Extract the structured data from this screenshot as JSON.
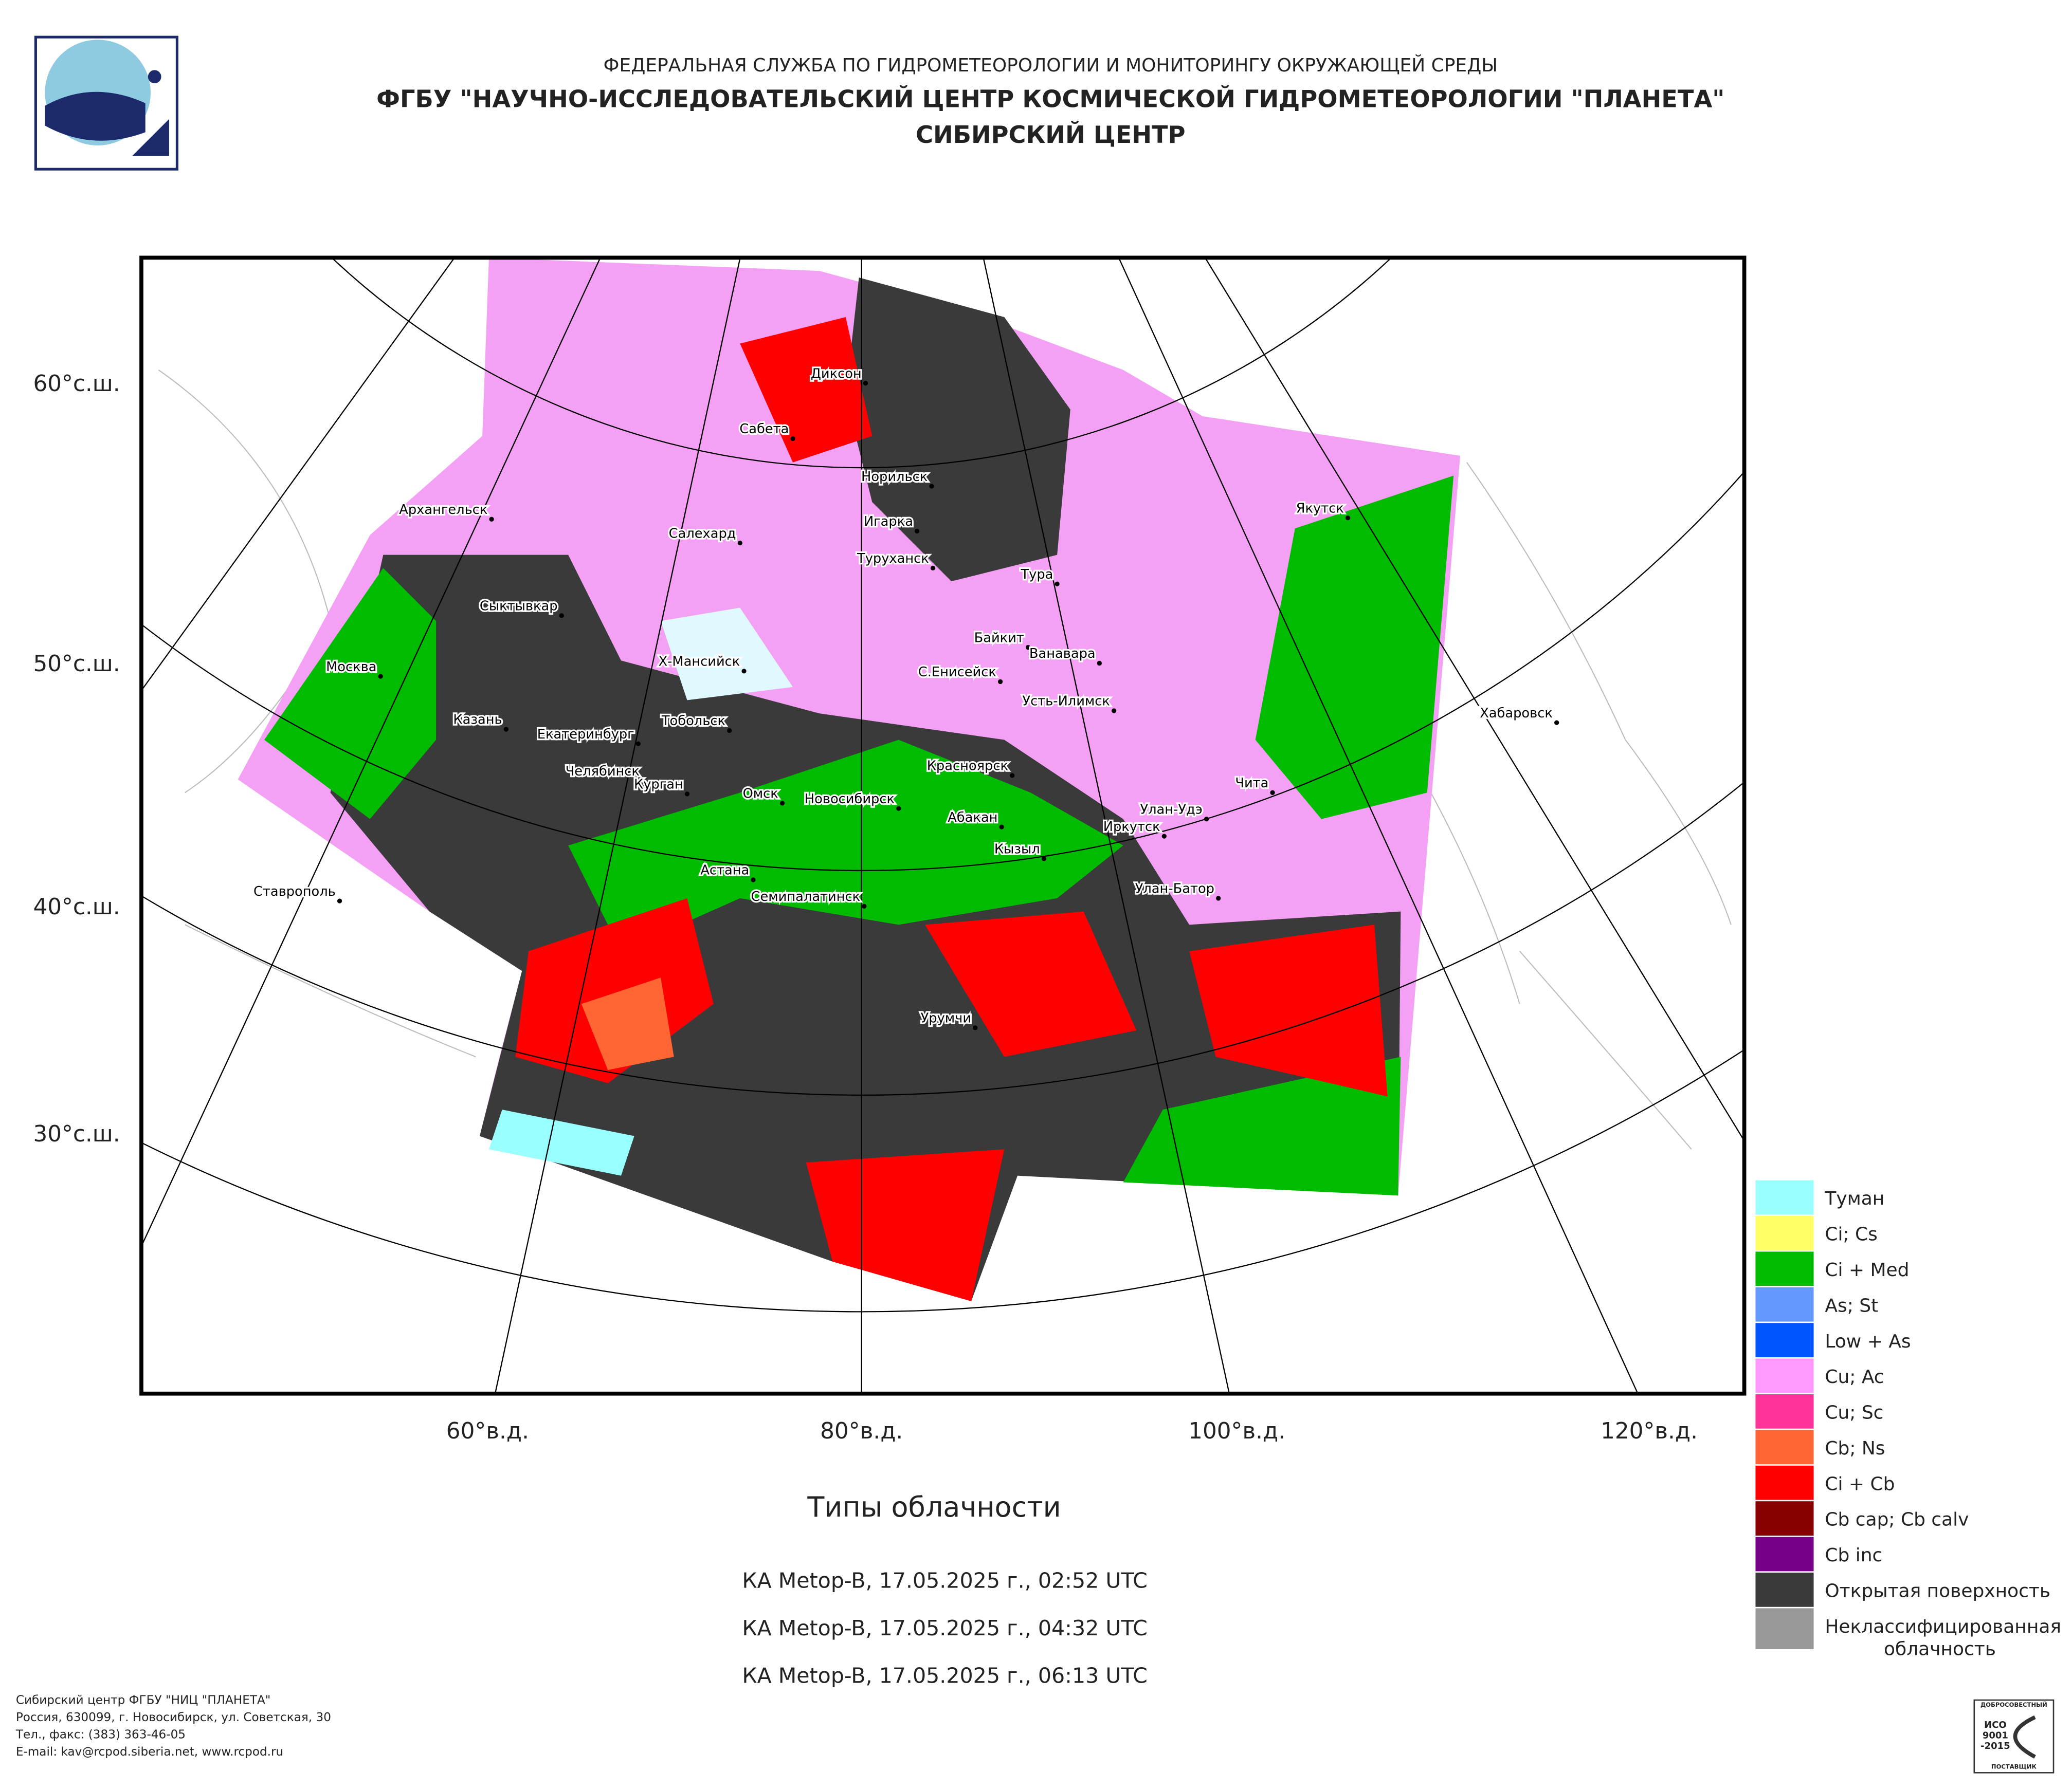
{
  "header": {
    "line1": "ФЕДЕРАЛЬНАЯ СЛУЖБА ПО ГИДРОМЕТЕОРОЛОГИИ И МОНИТОРИНГУ ОКРУЖАЮЩЕЙ СРЕДЫ",
    "line2": "ФГБУ \"НАУЧНО-ИССЛЕДОВАТЕЛЬСКИЙ ЦЕНТР КОСМИЧЕСКОЙ ГИДРОМЕТЕОРОЛОГИИ \"ПЛАНЕТА\"",
    "line3": "СИБИРСКИЙ ЦЕНТР"
  },
  "map": {
    "latitude_labels": [
      "60°с.ш.",
      "50°с.ш.",
      "40°с.ш.",
      "30°с.ш."
    ],
    "longitude_labels": [
      "60°в.д.",
      "80°в.д.",
      "100°в.д.",
      "120°в.д."
    ],
    "cities": [
      "Диксон",
      "Сабета",
      "Норильск",
      "Архангельск",
      "Игарка",
      "Салехард",
      "Якутск",
      "Туруханск",
      "Тура",
      "Сыктывкар",
      "Байкит",
      "Ванавара",
      "Москва",
      "Х-Мансийск",
      "С.Енисейск",
      "Усть-Илимск",
      "Хабаровск",
      "Казань",
      "Тобольск",
      "Екатеринбург",
      "Красноярск",
      "Челябинск",
      "Чита",
      "Курган",
      "Омск",
      "Новосибирск",
      "Улан-Удэ",
      "Абакан",
      "Иркутск",
      "Кызыл",
      "Астана",
      "Ставрополь",
      "Семипалатинск",
      "Улан-Батор",
      "Урумчи"
    ]
  },
  "legend": {
    "items": [
      {
        "label": [
          "Туман"
        ],
        "color": "#99ffff"
      },
      {
        "label": [
          "Ci; Cs"
        ],
        "color": "#ffff66"
      },
      {
        "label": [
          "Ci + Med"
        ],
        "color": "#00bb00"
      },
      {
        "label": [
          "As; St"
        ],
        "color": "#6699ff"
      },
      {
        "label": [
          "Low + As"
        ],
        "color": "#0055ff"
      },
      {
        "label": [
          "Cu; Ac"
        ],
        "color": "#ff99ff"
      },
      {
        "label": [
          "Cu; Sc"
        ],
        "color": "#ff3399"
      },
      {
        "label": [
          "Cb; Ns"
        ],
        "color": "#ff6633"
      },
      {
        "label": [
          "Ci + Cb"
        ],
        "color": "#ff0000"
      },
      {
        "label": [
          "Cb cap; Cb calv"
        ],
        "color": "#880000"
      },
      {
        "label": [
          "Cb inc"
        ],
        "color": "#770088"
      },
      {
        "label": [
          "Открытая поверхность"
        ],
        "color": "#3a3a3a"
      },
      {
        "label": [
          "Неклассифицированная",
          "облачность"
        ],
        "color": "#999999"
      }
    ]
  },
  "caption": {
    "title": "Типы облачности",
    "passes": [
      "КА Metop-B, 17.05.2025 г., 02:52 UTC",
      "КА Metop-B, 17.05.2025 г., 04:32 UTC",
      "КА Metop-B, 17.05.2025 г., 06:13 UTC"
    ]
  },
  "footer": {
    "lines": [
      "Сибирский центр ФГБУ \"НИЦ \"ПЛАНЕТА\"",
      "Россия, 630099, г. Новосибирск, ул. Советская, 30",
      "Тел., факс: (383) 363-46-05",
      "E-mail: kav@rcpod.siberia.net, www.rcpod.ru"
    ]
  },
  "badge": {
    "lines": [
      "ДОБРОСОВЕСТНЫЙ",
      "ИСО",
      "9001",
      "-2015",
      "ПОСТАВЩИК"
    ]
  }
}
